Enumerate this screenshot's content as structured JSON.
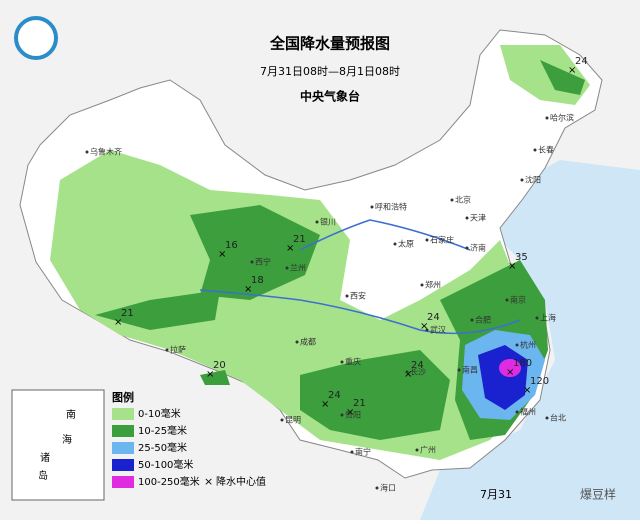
{
  "header": {
    "title": "全国降水量预报图",
    "subtitle": "7月31日08时—8月1日08时",
    "issuer": "中央气象台"
  },
  "legend": {
    "title": "图例",
    "items": [
      {
        "label": "0-10毫米",
        "color": "#a6e28a"
      },
      {
        "label": "10-25毫米",
        "color": "#3c9e3c"
      },
      {
        "label": "25-50毫米",
        "color": "#6cb6f0"
      },
      {
        "label": "50-100毫米",
        "color": "#1a22d0"
      },
      {
        "label": "100-250毫米",
        "color": "#e02ce0"
      }
    ],
    "center_label": "降水中心值"
  },
  "rain_centers": [
    24,
    16,
    21,
    18,
    21,
    20,
    24,
    24,
    24,
    21,
    35,
    180,
    120
  ],
  "cities": [
    "乌鲁木齐",
    "拉萨",
    "西宁",
    "兰州",
    "银川",
    "呼和浩特",
    "北京",
    "天津",
    "石家庄",
    "太原",
    "济南",
    "郑州",
    "西安",
    "成都",
    "重庆",
    "贵阳",
    "昆明",
    "南宁",
    "广州",
    "长沙",
    "武汉",
    "南昌",
    "合肥",
    "南京",
    "上海",
    "杭州",
    "福州",
    "台北",
    "沈阳",
    "长春",
    "哈尔滨",
    "海口"
  ],
  "inset": [
    "南",
    "海",
    "诸",
    "岛"
  ],
  "footer": {
    "date": "7月31",
    "watermark": "爆豆样"
  }
}
